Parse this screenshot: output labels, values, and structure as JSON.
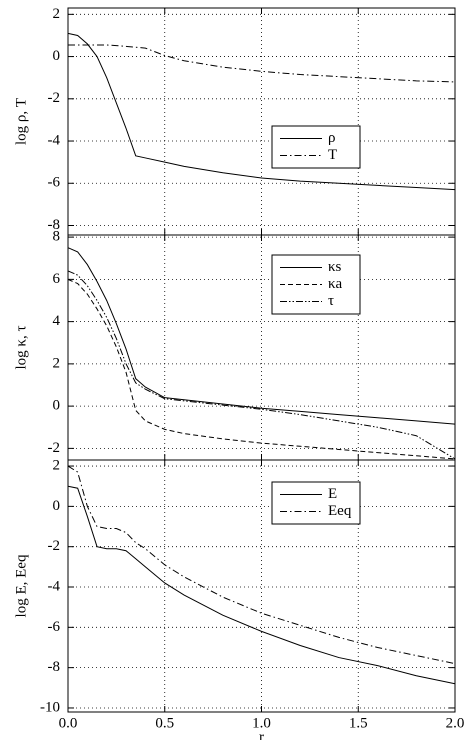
{
  "chart_data": [
    {
      "type": "line",
      "ylabel": "log ρ, T",
      "x": [
        0,
        0.05,
        0.1,
        0.15,
        0.2,
        0.25,
        0.3,
        0.35,
        0.4,
        0.5,
        0.6,
        0.8,
        1.0,
        1.2,
        1.4,
        1.6,
        1.8,
        2.0
      ],
      "series": [
        {
          "name": "ρ",
          "color": "#000000",
          "style": "solid",
          "values": [
            1.1,
            1.0,
            0.6,
            0.0,
            -1.0,
            -2.2,
            -3.4,
            -4.7,
            -4.8,
            -5.0,
            -5.2,
            -5.5,
            -5.75,
            -5.9,
            -6.0,
            -6.1,
            -6.2,
            -6.3
          ]
        },
        {
          "name": "T",
          "color": "#000000",
          "style": "dashdot",
          "values": [
            0.55,
            0.55,
            0.55,
            0.55,
            0.55,
            0.52,
            0.48,
            0.44,
            0.4,
            0.05,
            -0.2,
            -0.5,
            -0.7,
            -0.85,
            -0.95,
            -1.05,
            -1.15,
            -1.2
          ]
        }
      ],
      "xlim": [
        0,
        2.0
      ],
      "xticks": [
        0,
        0.5,
        1.0,
        1.5,
        2.0
      ],
      "ylim": [
        -8.45,
        2.3
      ],
      "yticks": [
        2,
        0,
        -2,
        -4,
        -6,
        -8
      ],
      "grid": true
    },
    {
      "type": "line",
      "ylabel": "log κ, τ",
      "x": [
        0,
        0.05,
        0.1,
        0.15,
        0.2,
        0.25,
        0.3,
        0.35,
        0.4,
        0.5,
        0.6,
        0.8,
        1.0,
        1.2,
        1.4,
        1.6,
        1.8,
        2.0
      ],
      "series": [
        {
          "name": "κs",
          "color": "#000000",
          "style": "solid",
          "values": [
            7.5,
            7.3,
            6.7,
            5.9,
            5.0,
            3.9,
            2.7,
            1.3,
            0.9,
            0.4,
            0.3,
            0.1,
            -0.1,
            -0.25,
            -0.4,
            -0.55,
            -0.7,
            -0.85
          ]
        },
        {
          "name": "κa",
          "color": "#000000",
          "style": "dashed",
          "values": [
            6.0,
            5.8,
            5.3,
            4.6,
            3.8,
            2.8,
            1.6,
            -0.2,
            -0.7,
            -1.1,
            -1.3,
            -1.55,
            -1.75,
            -1.9,
            -2.05,
            -2.2,
            -2.35,
            -2.5
          ]
        },
        {
          "name": "τ",
          "color": "#000000",
          "style": "dashdotdot",
          "values": [
            6.4,
            6.2,
            5.7,
            5.0,
            4.2,
            3.2,
            2.0,
            1.1,
            0.8,
            0.35,
            0.25,
            0.05,
            -0.15,
            -0.4,
            -0.7,
            -1.0,
            -1.4,
            -2.5
          ]
        }
      ],
      "xlim": [
        0,
        2.0
      ],
      "xticks": [
        0,
        0.5,
        1.0,
        1.5,
        2.0
      ],
      "ylim": [
        -2.55,
        8.1
      ],
      "yticks": [
        8,
        6,
        4,
        2,
        0,
        -2
      ],
      "grid": true
    },
    {
      "type": "line",
      "ylabel": "log E, Eeq",
      "xlabel": "r",
      "x": [
        0,
        0.05,
        0.1,
        0.15,
        0.2,
        0.25,
        0.3,
        0.35,
        0.4,
        0.5,
        0.6,
        0.8,
        1.0,
        1.2,
        1.4,
        1.6,
        1.8,
        2.0
      ],
      "series": [
        {
          "name": "E",
          "color": "#000000",
          "style": "solid",
          "values": [
            1.0,
            0.9,
            -0.5,
            -2.0,
            -2.1,
            -2.1,
            -2.2,
            -2.6,
            -3.0,
            -3.8,
            -4.4,
            -5.4,
            -6.2,
            -6.9,
            -7.5,
            -7.9,
            -8.4,
            -8.8
          ]
        },
        {
          "name": "Eeq",
          "color": "#000000",
          "style": "dashdot",
          "values": [
            2.0,
            1.7,
            0.0,
            -1.0,
            -1.1,
            -1.1,
            -1.3,
            -1.8,
            -2.1,
            -2.9,
            -3.5,
            -4.5,
            -5.3,
            -5.9,
            -6.5,
            -7.0,
            -7.4,
            -7.8
          ]
        }
      ],
      "xlim": [
        0,
        2.0
      ],
      "xticks": [
        {
          "value": 0,
          "label": "0.0"
        },
        {
          "value": 0.5,
          "label": "0.5"
        },
        {
          "value": 1.0,
          "label": "1.0"
        },
        {
          "value": 1.5,
          "label": "1.5"
        },
        {
          "value": 2.0,
          "label": "2.0"
        }
      ],
      "ylim": [
        -10.2,
        2.3
      ],
      "yticks": [
        2,
        0,
        -2,
        -4,
        -6,
        -8,
        -10
      ],
      "grid": true
    }
  ]
}
